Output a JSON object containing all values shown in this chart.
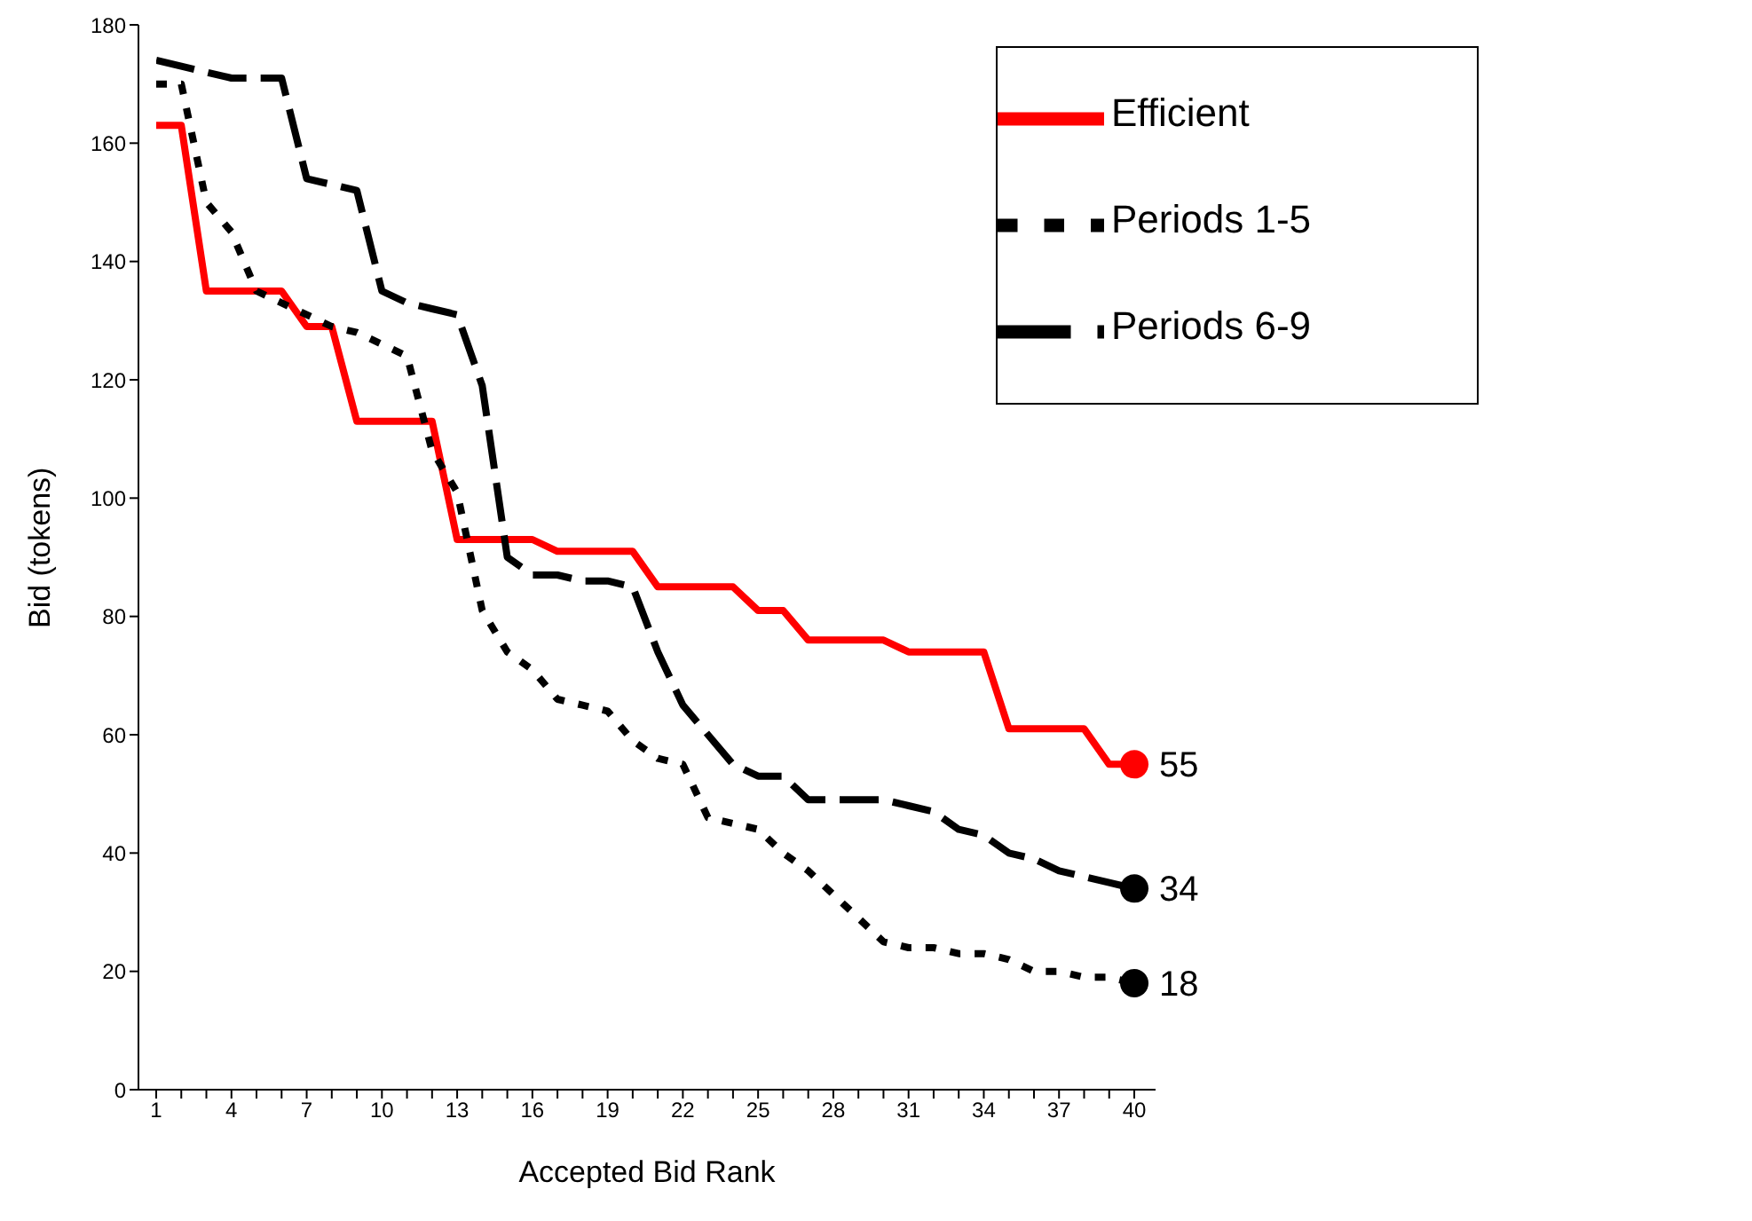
{
  "chart_data": {
    "type": "line",
    "xlabel": "Accepted Bid Rank",
    "ylabel": "Bid (tokens)",
    "categories": [
      "1",
      null,
      null,
      "4",
      null,
      null,
      "7",
      null,
      null,
      "10",
      null,
      null,
      "13",
      null,
      null,
      "16",
      null,
      null,
      "19",
      null,
      null,
      "22",
      null,
      null,
      "25",
      null,
      null,
      "28",
      null,
      null,
      "31",
      null,
      null,
      "34",
      null,
      null,
      "37",
      null,
      null,
      "40"
    ],
    "series": [
      {
        "name": "Efficient",
        "color": "#ff0000",
        "line_style": "solid",
        "values": [
          163,
          163,
          135,
          135,
          135,
          135,
          129,
          129,
          113,
          113,
          113,
          113,
          93,
          93,
          93,
          93,
          91,
          91,
          91,
          91,
          85,
          85,
          85,
          85,
          81,
          81,
          76,
          76,
          76,
          76,
          74,
          74,
          74,
          74,
          61,
          61,
          61,
          61,
          55,
          55
        ],
        "value_labels": [
          null,
          null,
          null,
          null,
          null,
          null,
          null,
          null,
          null,
          null,
          null,
          null,
          null,
          null,
          null,
          null,
          null,
          null,
          null,
          null,
          null,
          null,
          null,
          null,
          null,
          null,
          null,
          null,
          null,
          null,
          null,
          null,
          null,
          null,
          null,
          null,
          null,
          null,
          null,
          "55"
        ]
      },
      {
        "name": "Periods 1-5",
        "color": "#000000",
        "line_style": "dotted",
        "values": [
          170,
          170,
          150,
          145,
          135,
          133,
          131,
          129,
          128,
          126,
          124,
          108,
          101,
          81,
          74,
          71,
          66,
          65,
          64,
          59,
          56,
          55,
          46,
          45,
          44,
          40,
          37,
          33,
          29,
          25,
          24,
          24,
          23,
          23,
          22,
          20,
          20,
          19,
          19,
          18
        ],
        "value_labels": [
          null,
          null,
          null,
          null,
          null,
          null,
          null,
          null,
          null,
          null,
          null,
          null,
          null,
          null,
          null,
          null,
          null,
          null,
          null,
          null,
          null,
          null,
          null,
          null,
          null,
          null,
          null,
          null,
          null,
          null,
          null,
          null,
          null,
          null,
          null,
          null,
          null,
          null,
          null,
          "18"
        ]
      },
      {
        "name": "Periods 6-9",
        "color": "#000000",
        "line_style": "dashed",
        "values": [
          174,
          173,
          172,
          171,
          171,
          171,
          154,
          153,
          152,
          135,
          133,
          132,
          131,
          119,
          90,
          87,
          87,
          86,
          86,
          85,
          74,
          65,
          60,
          55,
          53,
          53,
          49,
          49,
          49,
          49,
          48,
          47,
          44,
          43,
          40,
          39,
          37,
          36,
          35,
          34
        ],
        "value_labels": [
          null,
          null,
          null,
          null,
          null,
          null,
          null,
          null,
          null,
          null,
          null,
          null,
          null,
          null,
          null,
          null,
          null,
          null,
          null,
          null,
          null,
          null,
          null,
          null,
          null,
          null,
          null,
          null,
          null,
          null,
          null,
          null,
          null,
          null,
          null,
          null,
          null,
          null,
          null,
          "34"
        ]
      }
    ],
    "ylim": [
      0,
      180
    ],
    "yticks": [
      0,
      20,
      40,
      60,
      80,
      100,
      120,
      140,
      160,
      180
    ],
    "grid": false,
    "legend": "top right",
    "marker": "none"
  }
}
